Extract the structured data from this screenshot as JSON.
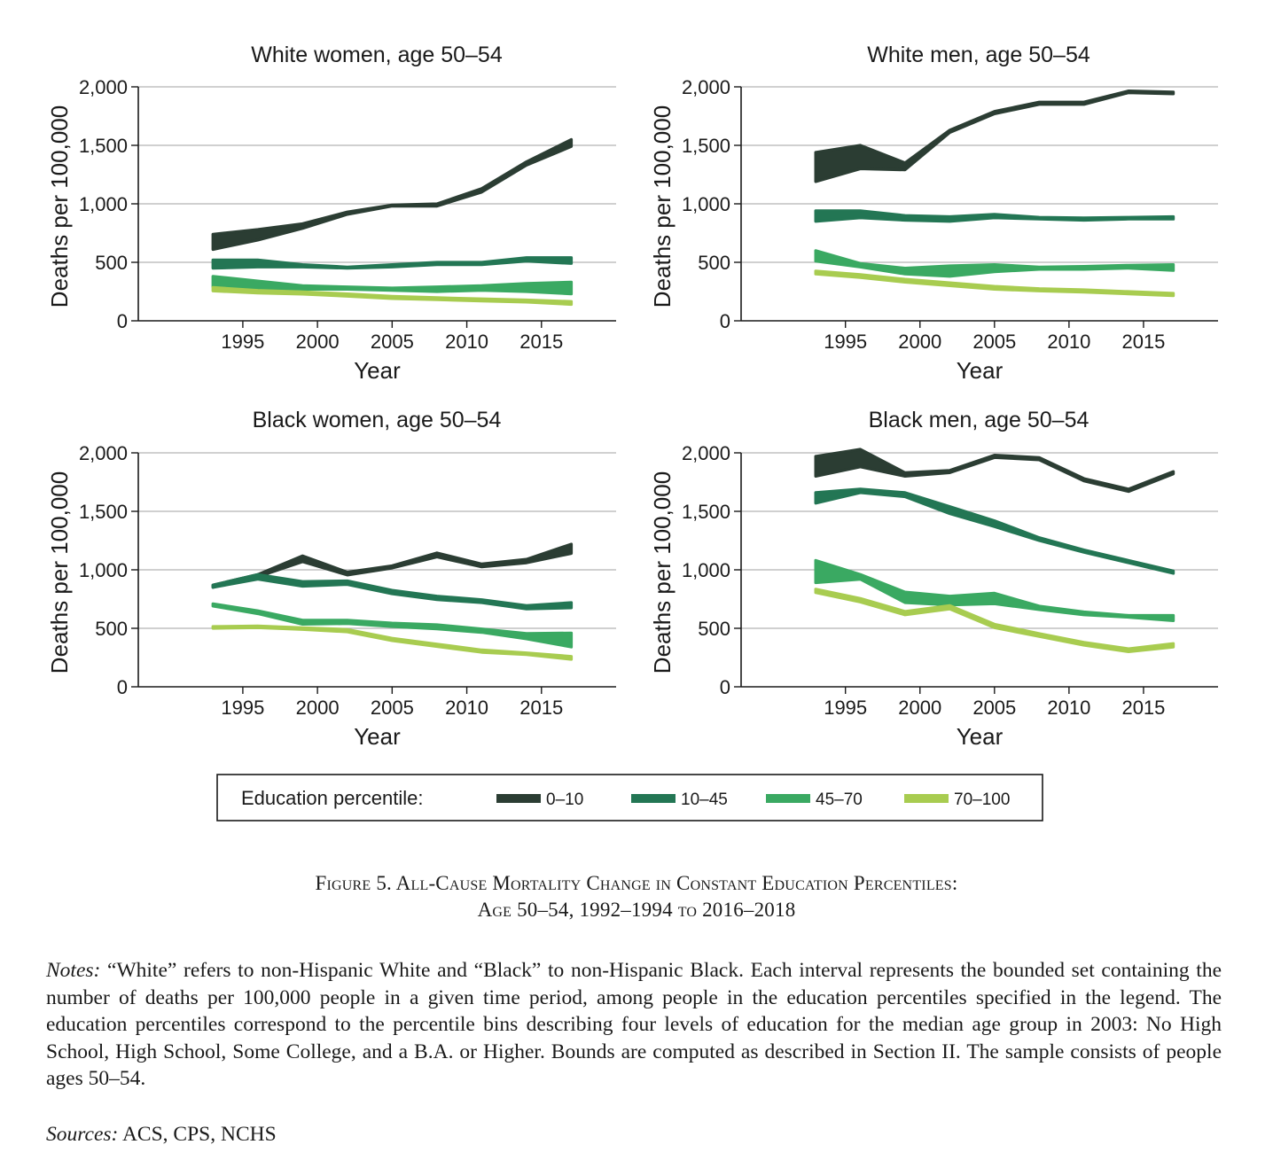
{
  "chart_data": [
    {
      "type": "area",
      "title": "White women, age 50–54",
      "xlabel": "Year",
      "ylabel": "Deaths per 100,000",
      "xlim": [
        1988,
        2020
      ],
      "ylim": [
        0,
        2000
      ],
      "xticks": [
        1995,
        2000,
        2005,
        2010,
        2015
      ],
      "yticks": [
        0,
        500,
        1000,
        1500,
        2000
      ],
      "ytick_labels": [
        "0",
        "500",
        "1,000",
        "1,500",
        "2,000"
      ],
      "grid": true,
      "x": [
        1993,
        1996,
        1999,
        2002,
        2005,
        2008,
        2011,
        2014,
        2017
      ],
      "series": [
        {
          "name": "0–10",
          "color": "#2b3d33",
          "low": [
            610,
            690,
            790,
            910,
            980,
            980,
            1100,
            1330,
            1490
          ],
          "high": [
            740,
            780,
            830,
            930,
            990,
            1000,
            1130,
            1360,
            1550
          ]
        },
        {
          "name": "10–45",
          "color": "#237654",
          "low": [
            450,
            460,
            460,
            450,
            460,
            480,
            480,
            510,
            490
          ],
          "high": [
            520,
            520,
            480,
            460,
            480,
            500,
            500,
            540,
            540
          ]
        },
        {
          "name": "45–70",
          "color": "#3aa962",
          "low": [
            290,
            280,
            270,
            270,
            260,
            250,
            260,
            250,
            230
          ],
          "high": [
            380,
            340,
            300,
            290,
            280,
            290,
            300,
            320,
            330
          ]
        },
        {
          "name": "70–100",
          "color": "#a8cc50",
          "low": [
            255,
            238,
            228,
            210,
            190,
            180,
            170,
            160,
            140
          ],
          "high": [
            285,
            260,
            248,
            230,
            210,
            198,
            188,
            178,
            165
          ]
        }
      ]
    },
    {
      "type": "area",
      "title": "White men, age 50–54",
      "xlabel": "Year",
      "ylabel": "Deaths per 100,000",
      "xlim": [
        1988,
        2020
      ],
      "ylim": [
        0,
        2000
      ],
      "xticks": [
        1995,
        2000,
        2005,
        2010,
        2015
      ],
      "yticks": [
        0,
        500,
        1000,
        1500,
        2000
      ],
      "ytick_labels": [
        "0",
        "500",
        "1,000",
        "1,500",
        "2,000"
      ],
      "grid": true,
      "x": [
        1993,
        1996,
        1999,
        2002,
        2005,
        2008,
        2011,
        2014,
        2017
      ],
      "series": [
        {
          "name": "0–10",
          "color": "#2b3d33",
          "low": [
            1190,
            1300,
            1290,
            1610,
            1770,
            1850,
            1850,
            1950,
            1940
          ],
          "high": [
            1440,
            1500,
            1350,
            1630,
            1790,
            1870,
            1870,
            1965,
            1955
          ]
        },
        {
          "name": "10–45",
          "color": "#237654",
          "low": [
            850,
            880,
            860,
            850,
            880,
            870,
            860,
            870,
            870
          ],
          "high": [
            940,
            940,
            900,
            890,
            910,
            885,
            880,
            885,
            890
          ]
        },
        {
          "name": "45–70",
          "color": "#3aa962",
          "low": [
            510,
            460,
            400,
            380,
            420,
            440,
            440,
            450,
            430
          ],
          "high": [
            600,
            490,
            450,
            470,
            480,
            460,
            465,
            475,
            480
          ]
        },
        {
          "name": "70–100",
          "color": "#a8cc50",
          "low": [
            400,
            370,
            330,
            300,
            270,
            255,
            245,
            230,
            215
          ],
          "high": [
            425,
            395,
            355,
            325,
            295,
            275,
            265,
            250,
            235
          ]
        }
      ]
    },
    {
      "type": "area",
      "title": "Black women, age 50–54",
      "xlabel": "Year",
      "ylabel": "Deaths per 100,000",
      "xlim": [
        1988,
        2020
      ],
      "ylim": [
        0,
        2000
      ],
      "xticks": [
        1995,
        2000,
        2005,
        2010,
        2015
      ],
      "yticks": [
        0,
        500,
        1000,
        1500,
        2000
      ],
      "ytick_labels": [
        "0",
        "500",
        "1,000",
        "1,500",
        "2,000"
      ],
      "grid": true,
      "x": [
        1993,
        1996,
        1999,
        2002,
        2005,
        2008,
        2011,
        2014,
        2017
      ],
      "series": [
        {
          "name": "0–10",
          "color": "#2b3d33",
          "low": [
            850,
            940,
            1070,
            955,
            1015,
            1110,
            1025,
            1060,
            1140
          ],
          "high": [
            870,
            960,
            1120,
            980,
            1035,
            1145,
            1050,
            1090,
            1220
          ]
        },
        {
          "name": "10–45",
          "color": "#237654",
          "low": [
            850,
            920,
            860,
            875,
            795,
            745,
            720,
            665,
            675
          ],
          "high": [
            870,
            960,
            900,
            905,
            825,
            775,
            745,
            695,
            720
          ]
        },
        {
          "name": "45–70",
          "color": "#3aa962",
          "low": [
            690,
            625,
            535,
            540,
            515,
            495,
            465,
            410,
            340
          ],
          "high": [
            710,
            650,
            570,
            570,
            545,
            530,
            495,
            455,
            460
          ]
        },
        {
          "name": "70–100",
          "color": "#a8cc50",
          "low": [
            500,
            505,
            490,
            470,
            395,
            345,
            295,
            275,
            235
          ],
          "high": [
            515,
            520,
            505,
            490,
            415,
            365,
            315,
            290,
            260
          ]
        }
      ]
    },
    {
      "type": "area",
      "title": "Black men, age 50–54",
      "xlabel": "Year",
      "ylabel": "Deaths per 100,000",
      "xlim": [
        1988,
        2020
      ],
      "ylim": [
        0,
        2000
      ],
      "xticks": [
        1995,
        2000,
        2005,
        2010,
        2015
      ],
      "yticks": [
        0,
        500,
        1000,
        1500,
        2000
      ],
      "ytick_labels": [
        "0",
        "500",
        "1,000",
        "1,500",
        "2,000"
      ],
      "grid": true,
      "x": [
        1993,
        1996,
        1999,
        2002,
        2005,
        2008,
        2011,
        2014,
        2017
      ],
      "series": [
        {
          "name": "0–10",
          "color": "#2b3d33",
          "low": [
            1800,
            1880,
            1800,
            1830,
            1960,
            1940,
            1760,
            1670,
            1820
          ],
          "high": [
            1970,
            2030,
            1830,
            1850,
            1980,
            1960,
            1780,
            1690,
            1840
          ]
        },
        {
          "name": "10–45",
          "color": "#237654",
          "low": [
            1570,
            1660,
            1625,
            1480,
            1370,
            1250,
            1150,
            1060,
            970
          ],
          "high": [
            1660,
            1690,
            1660,
            1540,
            1420,
            1275,
            1170,
            1080,
            990
          ]
        },
        {
          "name": "45–70",
          "color": "#3aa962",
          "low": [
            890,
            920,
            720,
            700,
            710,
            660,
            615,
            595,
            565
          ],
          "high": [
            1080,
            960,
            810,
            775,
            800,
            690,
            640,
            610,
            610
          ]
        },
        {
          "name": "70–100",
          "color": "#a8cc50",
          "low": [
            805,
            725,
            615,
            665,
            505,
            430,
            355,
            300,
            340
          ],
          "high": [
            835,
            755,
            645,
            695,
            535,
            455,
            380,
            325,
            370
          ]
        }
      ]
    }
  ],
  "legend": {
    "title": "Education percentile:",
    "items": [
      {
        "label": "0–10",
        "color": "#2b3d33"
      },
      {
        "label": "10–45",
        "color": "#237654"
      },
      {
        "label": "45–70",
        "color": "#3aa962"
      },
      {
        "label": "70–100",
        "color": "#a8cc50"
      }
    ]
  },
  "caption": {
    "line1": "Figure 5. All-Cause Mortality Change in Constant Education Percentiles:",
    "line2": "Age 50–54, 1992–1994 to 2016–2018"
  },
  "notes": {
    "label": "Notes:",
    "text": "“White” refers to non-Hispanic White and “Black” to non-Hispanic Black. Each interval represents the bounded set containing the number of deaths per 100,000 people in a given time period, among people in the education percentiles specified in the legend. The education percentiles correspond to the percentile bins describing four levels of education for the median age group in 2003: No High School, High School, Some College, and a B.A. or Higher. Bounds are computed as described in Section II. The sample consists of people ages 50–54."
  },
  "sources": {
    "label": "Sources:",
    "text": "ACS, CPS, NCHS"
  }
}
